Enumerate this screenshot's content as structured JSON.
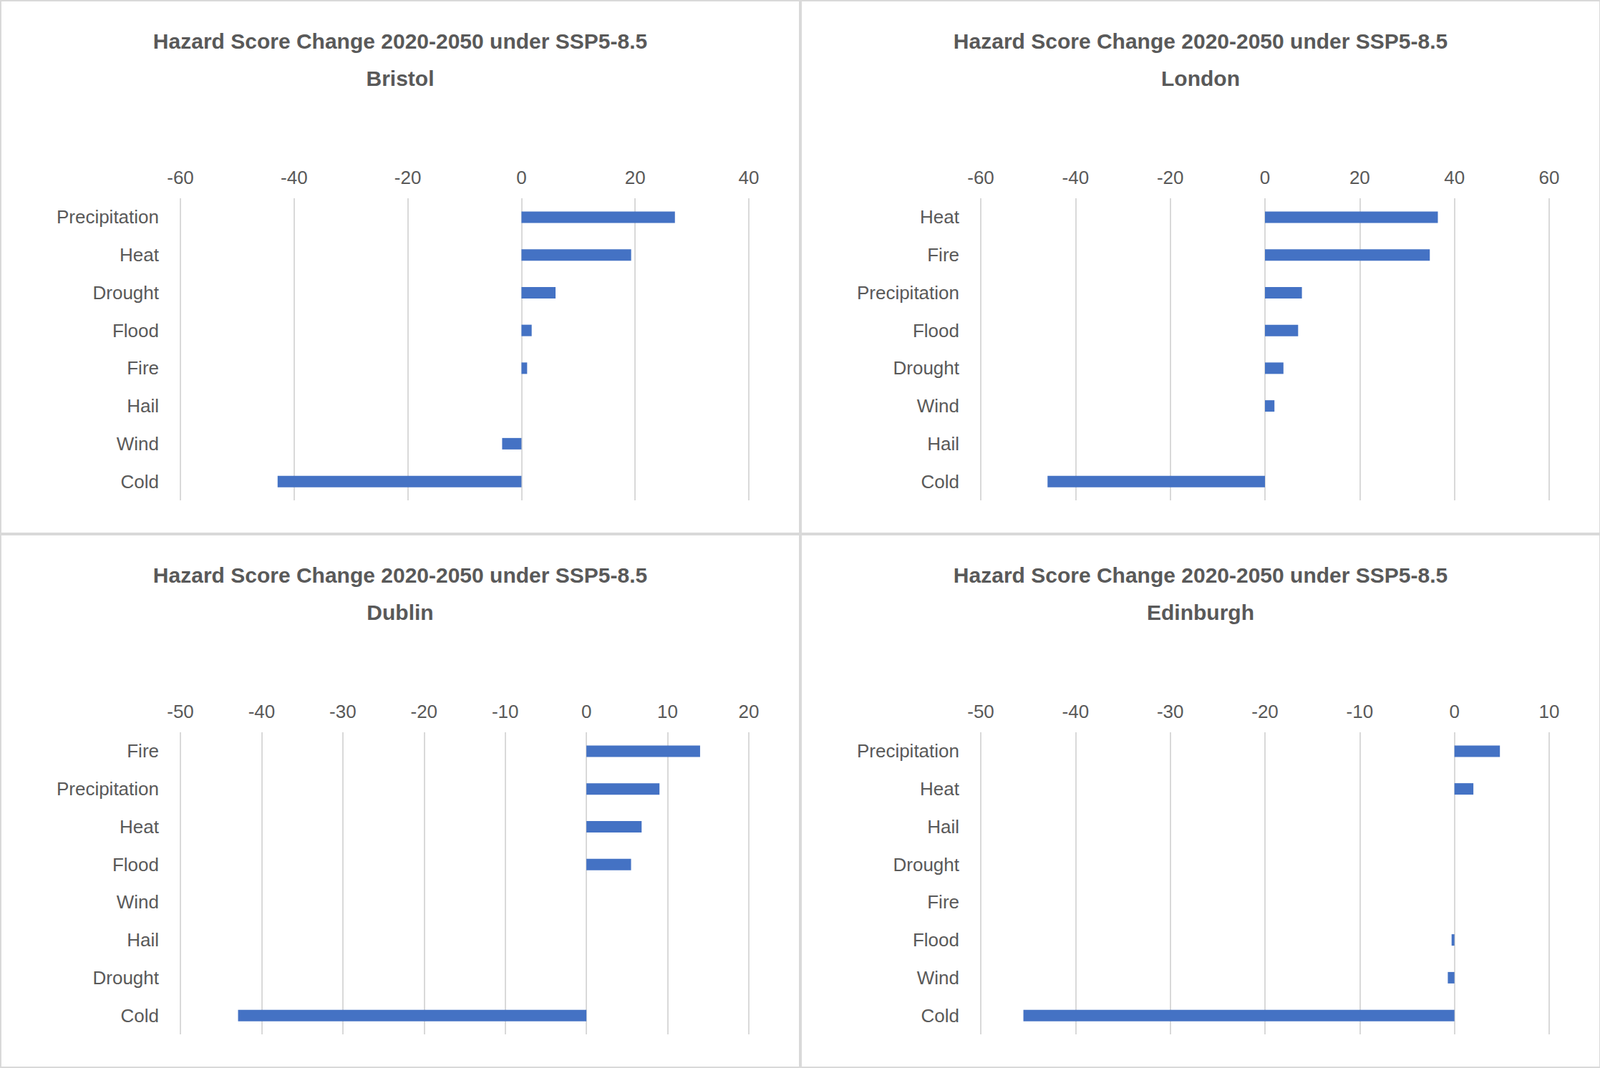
{
  "chart_data": [
    {
      "type": "bar",
      "orientation": "horizontal",
      "title": "Hazard Score Change 2020-2050 under SSP5-8.5",
      "subtitle": "Bristol",
      "categories": [
        "Precipitation",
        "Heat",
        "Drought",
        "Flood",
        "Fire",
        "Hail",
        "Wind",
        "Cold"
      ],
      "values": [
        27,
        19.3,
        6,
        1.8,
        1,
        0,
        -3.4,
        -42.9
      ],
      "color": "#4472c4",
      "xlim": [
        -60,
        40
      ],
      "xticks": [
        -60,
        -40,
        -20,
        0,
        20,
        40
      ],
      "grid": true
    },
    {
      "type": "bar",
      "orientation": "horizontal",
      "title": "Hazard Score Change 2020-2050 under SSP5-8.5",
      "subtitle": "London",
      "categories": [
        "Heat",
        "Fire",
        "Precipitation",
        "Flood",
        "Drought",
        "Wind",
        "Hail",
        "Cold"
      ],
      "values": [
        36.5,
        34.8,
        7.8,
        7,
        3.9,
        2,
        0,
        -45.9
      ],
      "color": "#4472c4",
      "xlim": [
        -60,
        60
      ],
      "xticks": [
        -60,
        -40,
        -20,
        0,
        20,
        40,
        60
      ],
      "grid": true
    },
    {
      "type": "bar",
      "orientation": "horizontal",
      "title": "Hazard Score Change 2020-2050 under SSP5-8.5",
      "subtitle": "Dublin",
      "categories": [
        "Fire",
        "Precipitation",
        "Heat",
        "Flood",
        "Wind",
        "Hail",
        "Drought",
        "Cold"
      ],
      "values": [
        14,
        9,
        6.8,
        5.5,
        0,
        0,
        0,
        -42.9
      ],
      "color": "#4472c4",
      "xlim": [
        -50,
        20
      ],
      "xticks": [
        -50,
        -40,
        -30,
        -20,
        -10,
        0,
        10,
        20
      ],
      "grid": true
    },
    {
      "type": "bar",
      "orientation": "horizontal",
      "title": "Hazard Score Change 2020-2050 under SSP5-8.5",
      "subtitle": "Edinburgh",
      "categories": [
        "Precipitation",
        "Heat",
        "Hail",
        "Drought",
        "Fire",
        "Flood",
        "Wind",
        "Cold"
      ],
      "values": [
        4.8,
        2,
        0,
        0,
        0,
        -0.3,
        -0.7,
        -45.5
      ],
      "color": "#4472c4",
      "xlim": [
        -50,
        10
      ],
      "xticks": [
        -50,
        -40,
        -30,
        -20,
        -10,
        0,
        10
      ],
      "grid": true
    }
  ]
}
